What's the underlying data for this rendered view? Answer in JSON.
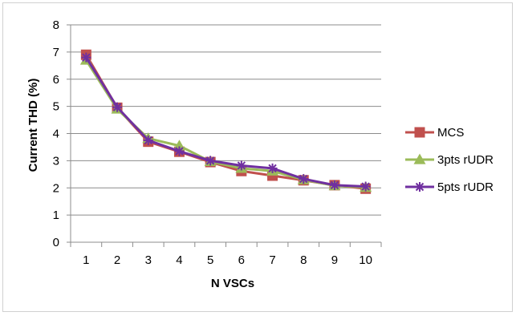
{
  "chart_data": {
    "type": "line",
    "title": "",
    "xlabel": "N VSCs",
    "ylabel": "Current THD (%)",
    "x": [
      1,
      2,
      3,
      4,
      5,
      6,
      7,
      8,
      9,
      10
    ],
    "ylim": [
      0,
      8
    ],
    "yticks": [
      0,
      1,
      2,
      3,
      4,
      5,
      6,
      7,
      8
    ],
    "grid": "horizontal",
    "legend": "right",
    "series": [
      {
        "name": "MCS",
        "marker": "square",
        "color": "#c0504d",
        "values": [
          6.9,
          4.95,
          3.7,
          3.33,
          2.95,
          2.62,
          2.45,
          2.28,
          2.1,
          1.97
        ]
      },
      {
        "name": "3pts rUDR",
        "marker": "triangle",
        "color": "#9bbb59",
        "values": [
          6.7,
          4.9,
          3.82,
          3.55,
          2.97,
          2.72,
          2.62,
          2.3,
          2.08,
          2.02
        ]
      },
      {
        "name": "5pts rUDR",
        "marker": "star",
        "color": "#7030a0",
        "values": [
          6.8,
          4.97,
          3.75,
          3.35,
          3.0,
          2.82,
          2.72,
          2.33,
          2.1,
          2.05
        ]
      }
    ]
  }
}
